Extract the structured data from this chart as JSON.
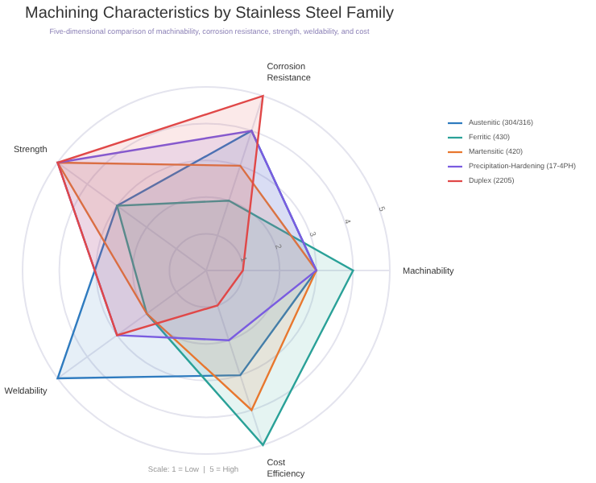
{
  "chart_data": {
    "type": "radar",
    "title": "Machining Characteristics by Stainless Steel Family",
    "subtitle": "Five-dimensional comparison of machinability, corrosion resistance, strength, weldability, and cost",
    "categories": [
      "Corrosion Resistance",
      "Machinability",
      "Cost Efficiency",
      "Weldability",
      "Strength"
    ],
    "series": [
      {
        "name": "Austenitic (304/316)",
        "color": "#2f7bbf",
        "values": [
          4,
          3,
          3,
          5,
          3
        ]
      },
      {
        "name": "Ferritic (430)",
        "color": "#2aa198",
        "values": [
          2,
          4,
          5,
          2,
          3
        ]
      },
      {
        "name": "Martensitic (420)",
        "color": "#e8772e",
        "values": [
          3,
          3,
          4,
          2,
          5
        ]
      },
      {
        "name": "Precipitation-Hardening (17-4PH)",
        "color": "#7a5ce0",
        "values": [
          4,
          3,
          2,
          3,
          5
        ]
      },
      {
        "name": "Duplex (2205)",
        "color": "#e04848",
        "values": [
          5,
          1,
          1,
          3,
          5
        ]
      }
    ],
    "ylim": [
      0,
      5
    ],
    "yticks": [
      1,
      2,
      3,
      4,
      5
    ],
    "grid": true,
    "legend": "top right",
    "annotations": [
      "Scale: 1 = Low  |  5 = High"
    ]
  }
}
